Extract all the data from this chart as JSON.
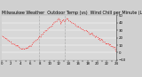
{
  "title": "Milwaukee Weather  Outdoor Temp (vs)  Wind Chill per Minute (Last 24 Hours)",
  "line_color": "#ff0000",
  "bg_color": "#d0d0d0",
  "plot_bg_color": "#d8d8d8",
  "grid_color": "#ffffff",
  "vline_color": "#aaaaaa",
  "ylim": [
    -10,
    50
  ],
  "yticks": [
    -10,
    0,
    10,
    20,
    30,
    40,
    50
  ],
  "num_points": 144,
  "vline_positions": [
    0.33,
    0.55
  ],
  "title_fontsize": 3.5,
  "tick_fontsize": 2.8,
  "linewidth": 0.6,
  "noise_seed": 42
}
